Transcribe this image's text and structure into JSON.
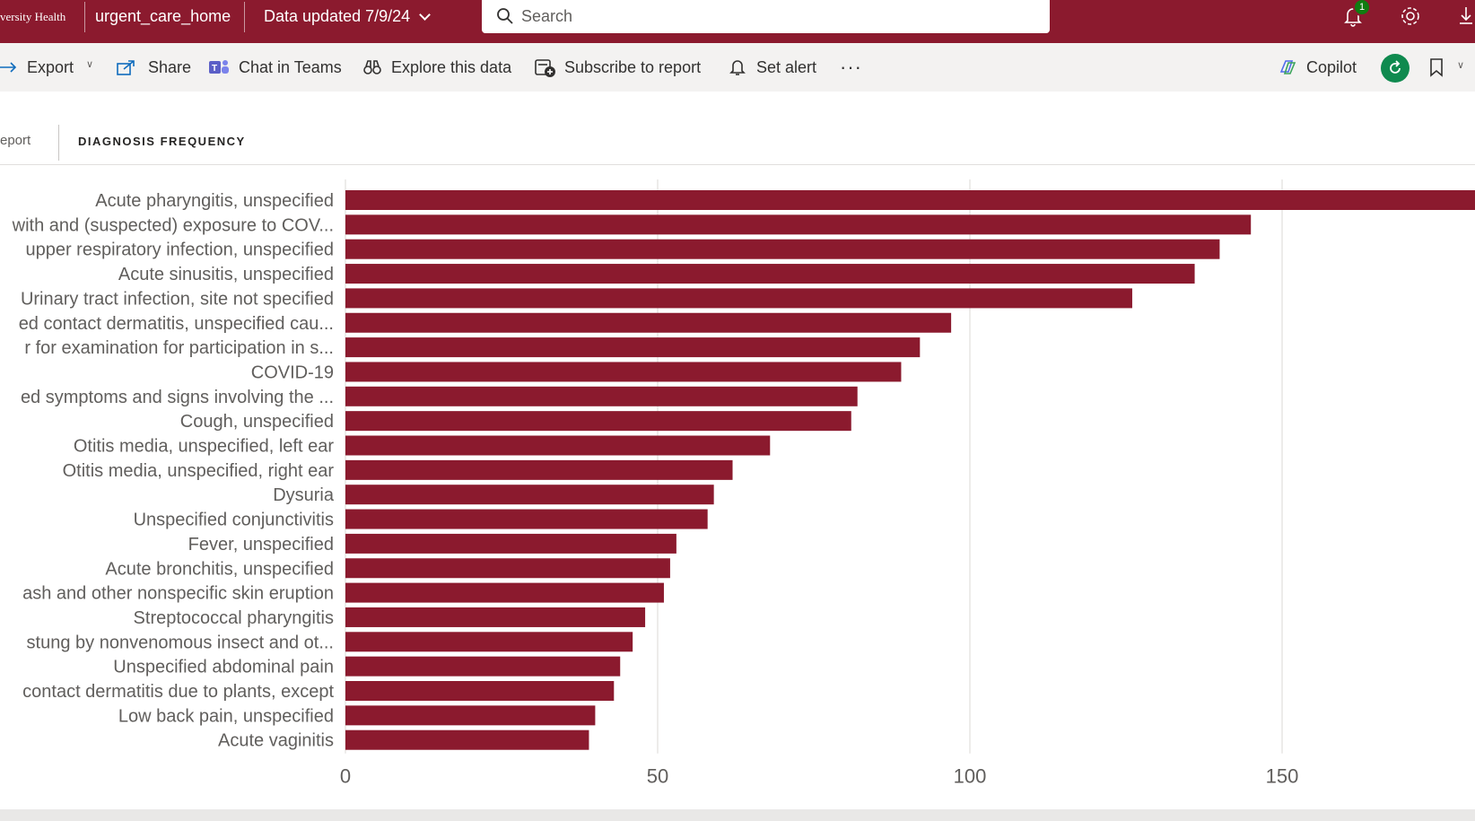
{
  "topbar": {
    "brand": "versity Health",
    "workspace": "urgent_care_home",
    "data_updated": "Data updated 7/9/24",
    "search_placeholder": "Search",
    "notification_count": "1"
  },
  "actionbar": {
    "export": "Export",
    "share": "Share",
    "chat_in_teams": "Chat in Teams",
    "explore": "Explore this data",
    "subscribe": "Subscribe to report",
    "set_alert": "Set alert",
    "more": "···",
    "copilot": "Copilot"
  },
  "tabs": {
    "previous": "eport",
    "current": "DIAGNOSIS FREQUENCY"
  },
  "colors": {
    "accent": "#8b1a2e",
    "bar": "#8b1a2e",
    "gridline": "#e1dfdd",
    "label": "#605e5c"
  },
  "chart_data": {
    "type": "bar",
    "orientation": "horizontal",
    "categories": [
      "Acute pharyngitis, unspecified",
      "with and (suspected) exposure to COV...",
      "upper respiratory infection, unspecified",
      "Acute sinusitis, unspecified",
      "Urinary tract infection, site not specified",
      "ed contact dermatitis, unspecified cau...",
      "r for examination for participation in s...",
      "COVID-19",
      "ed symptoms and signs involving the ...",
      "Cough, unspecified",
      "Otitis media, unspecified, left ear",
      "Otitis media, unspecified, right ear",
      "Dysuria",
      "Unspecified conjunctivitis",
      "Fever, unspecified",
      "Acute bronchitis, unspecified",
      "ash and other nonspecific skin eruption",
      "Streptococcal pharyngitis",
      "stung by nonvenomous insect and ot...",
      "Unspecified abdominal pain",
      "contact dermatitis due to plants, except",
      "Low back pain, unspecified",
      "Acute vaginitis"
    ],
    "values": [
      185,
      145,
      140,
      136,
      126,
      97,
      92,
      89,
      82,
      81,
      68,
      62,
      59,
      58,
      53,
      52,
      51,
      48,
      46,
      44,
      43,
      40,
      39
    ],
    "x_ticks": [
      0,
      50,
      100,
      150
    ],
    "xlim": [
      0,
      180
    ],
    "grid": true
  }
}
